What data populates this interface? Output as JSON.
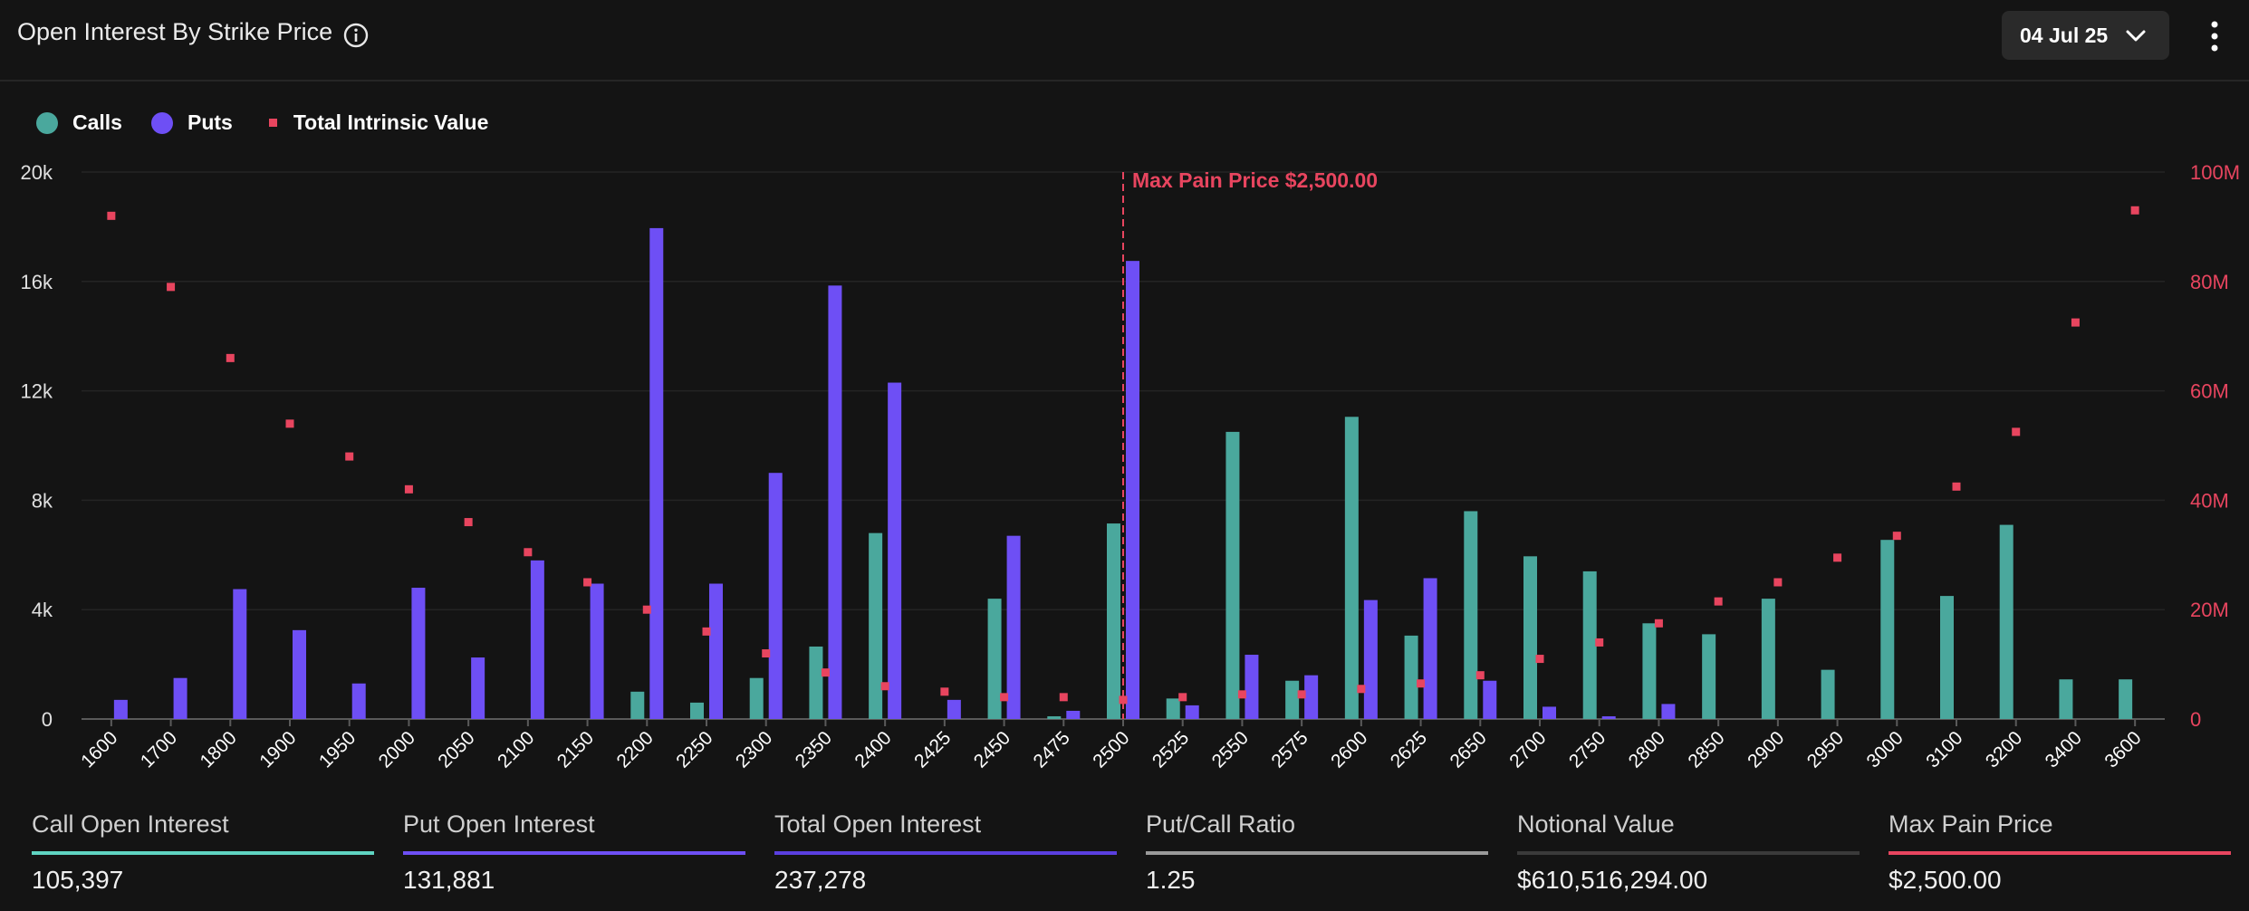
{
  "header": {
    "title": "Open Interest By Strike Price",
    "date": "04 Jul 25"
  },
  "legend": {
    "calls": "Calls",
    "puts": "Puts",
    "intrinsic": "Total Intrinsic Value"
  },
  "colors": {
    "calls": "#4aa89d",
    "puts": "#6e4ff5",
    "intrinsic": "#e8455f",
    "background": "#141414"
  },
  "icons": [
    "info-icon",
    "chevron-down-icon",
    "more-vertical-icon"
  ],
  "chart_data": {
    "type": "bar",
    "categories": [
      "1600",
      "1700",
      "1800",
      "1900",
      "1950",
      "2000",
      "2050",
      "2100",
      "2150",
      "2200",
      "2250",
      "2300",
      "2350",
      "2400",
      "2425",
      "2450",
      "2475",
      "2500",
      "2525",
      "2550",
      "2575",
      "2600",
      "2625",
      "2650",
      "2700",
      "2750",
      "2800",
      "2850",
      "2900",
      "2950",
      "3000",
      "3100",
      "3200",
      "3400",
      "3600"
    ],
    "series": [
      {
        "name": "Calls",
        "axis": "left",
        "values": [
          0,
          0,
          0,
          0,
          0,
          0,
          0,
          0,
          0,
          1000,
          600,
          1500,
          2650,
          6800,
          0,
          4400,
          100,
          7150,
          750,
          10500,
          1400,
          11050,
          3050,
          7600,
          5950,
          5400,
          3500,
          3100,
          4400,
          1800,
          6550,
          4500,
          7100,
          1450,
          1450
        ]
      },
      {
        "name": "Puts",
        "axis": "left",
        "values": [
          700,
          1500,
          4750,
          3250,
          1300,
          4800,
          2250,
          5800,
          4950,
          17950,
          4950,
          9000,
          15850,
          12300,
          700,
          6700,
          300,
          16750,
          500,
          2350,
          1600,
          4350,
          5150,
          1400,
          450,
          100,
          550,
          0,
          0,
          0,
          0,
          0,
          0,
          0,
          0
        ]
      },
      {
        "name": "Total Intrinsic Value",
        "axis": "right",
        "type": "scatter",
        "values": [
          92000000,
          79000000,
          66000000,
          54000000,
          48000000,
          42000000,
          36000000,
          30500000,
          25000000,
          20000000,
          16000000,
          12000000,
          8500000,
          6000000,
          5000000,
          4000000,
          4000000,
          3500000,
          4000000,
          4500000,
          4500000,
          5500000,
          6500000,
          8000000,
          11000000,
          14000000,
          17500000,
          21500000,
          25000000,
          29500000,
          33500000,
          42500000,
          52500000,
          72500000,
          93000000
        ]
      }
    ],
    "left_axis": {
      "ylim": [
        0,
        20000
      ],
      "ticks": [
        "0",
        "4k",
        "8k",
        "12k",
        "16k",
        "20k"
      ]
    },
    "right_axis": {
      "ylim": [
        0,
        100000000
      ],
      "ticks": [
        "0",
        "20M",
        "40M",
        "60M",
        "80M",
        "100M"
      ]
    },
    "annotation": {
      "category": "2500",
      "label": "Max Pain Price $2,500.00"
    },
    "grid": true,
    "legend_position": "top-left"
  },
  "stats": [
    {
      "label": "Call Open Interest",
      "value": "105,397",
      "color": "#5fd4c2"
    },
    {
      "label": "Put Open Interest",
      "value": "131,881",
      "color": "#6e4ff5"
    },
    {
      "label": "Total Open Interest",
      "value": "237,278",
      "color": "#5a3fe0"
    },
    {
      "label": "Put/Call Ratio",
      "value": "1.25",
      "color": "#9a9a9a"
    },
    {
      "label": "Notional Value",
      "value": "$610,516,294.00",
      "color": "#3a3a3a"
    },
    {
      "label": "Max Pain Price",
      "value": "$2,500.00",
      "color": "#e8455f"
    }
  ]
}
